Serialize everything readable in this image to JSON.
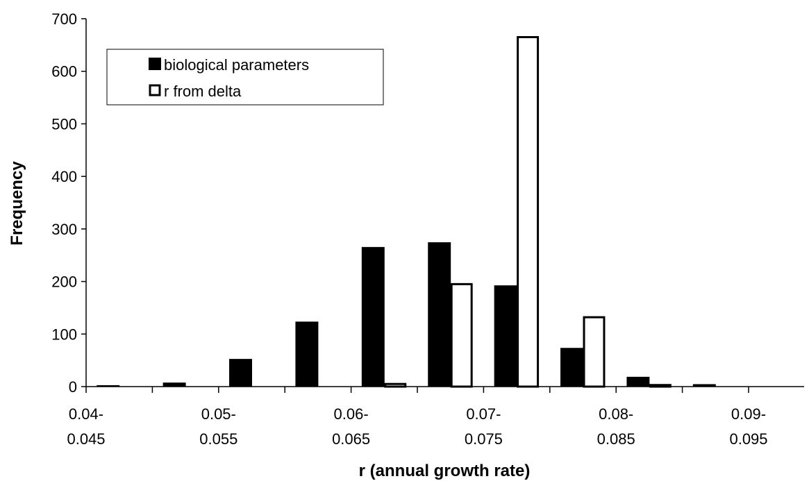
{
  "chart_data": {
    "type": "bar",
    "title": "",
    "xlabel": "r (annual growth rate)",
    "ylabel": "Frequency",
    "ylim": [
      0,
      700
    ],
    "yticks": [
      0,
      100,
      200,
      300,
      400,
      500,
      600,
      700
    ],
    "categories": [
      "0.04-0.045",
      "0.045-0.05",
      "0.05-0.055",
      "0.055-0.06",
      "0.06-0.065",
      "0.065-0.07",
      "0.07-0.075",
      "0.075-0.08",
      "0.08-0.085",
      "0.085-0.09",
      "0.09-0.095"
    ],
    "tick_labels": [
      {
        "category_index": 0,
        "line1": "0.04-",
        "line2": "0.045"
      },
      {
        "category_index": 2,
        "line1": "0.05-",
        "line2": "0.055"
      },
      {
        "category_index": 4,
        "line1": "0.06-",
        "line2": "0.065"
      },
      {
        "category_index": 6,
        "line1": "0.07-",
        "line2": "0.075"
      },
      {
        "category_index": 8,
        "line1": "0.08-",
        "line2": "0.085"
      },
      {
        "category_index": 10,
        "line1": "0.09-",
        "line2": "0.095"
      }
    ],
    "series": [
      {
        "name": "biological parameters",
        "fill": "#000000",
        "values": [
          2,
          7,
          52,
          123,
          265,
          274,
          192,
          73,
          18,
          4,
          0
        ]
      },
      {
        "name": "r from delta",
        "fill": "#ffffff",
        "values": [
          0,
          0,
          0,
          0,
          5,
          195,
          665,
          132,
          3,
          0,
          0
        ]
      }
    ],
    "legend_position": "top-left",
    "grid": false
  }
}
